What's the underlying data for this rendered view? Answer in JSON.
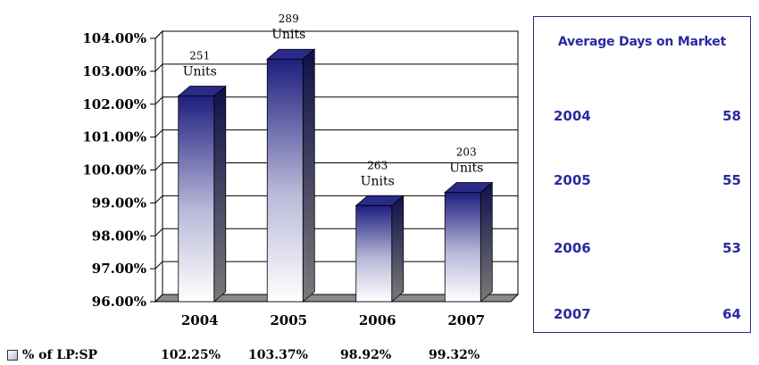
{
  "chart_data": {
    "type": "bar",
    "categories": [
      "2004",
      "2005",
      "2006",
      "2007"
    ],
    "values": [
      102.25,
      103.37,
      98.92,
      99.32
    ],
    "ylim": [
      96,
      104
    ],
    "yticks": [
      "96.00%",
      "97.00%",
      "98.00%",
      "99.00%",
      "100.00%",
      "101.00%",
      "102.00%",
      "103.00%",
      "104.00%"
    ],
    "tick_values": [
      96,
      97,
      98,
      99,
      100,
      101,
      102,
      103,
      104
    ],
    "unit_counts": [
      "251",
      "289",
      "263",
      "203"
    ],
    "unit_word": "Units",
    "grid": true,
    "series": [
      {
        "name": "% of LP:SP",
        "values": [
          102.25,
          103.37,
          98.92,
          99.32
        ]
      }
    ]
  },
  "legend": {
    "label": "% of LP:SP",
    "values": [
      "102.25%",
      "103.37%",
      "98.92%",
      "99.32%"
    ]
  },
  "days_on_market": {
    "title": "Average Days on Market",
    "rows": [
      {
        "year": "2004",
        "days": "58"
      },
      {
        "year": "2005",
        "days": "55"
      },
      {
        "year": "2006",
        "days": "53"
      },
      {
        "year": "2007",
        "days": "64"
      }
    ]
  },
  "colors": {
    "bar_top": "#1e1e80",
    "bar_bottom": "#ffffff",
    "panel_text": "#2a2aa0",
    "floor": "#8a8a8a"
  }
}
